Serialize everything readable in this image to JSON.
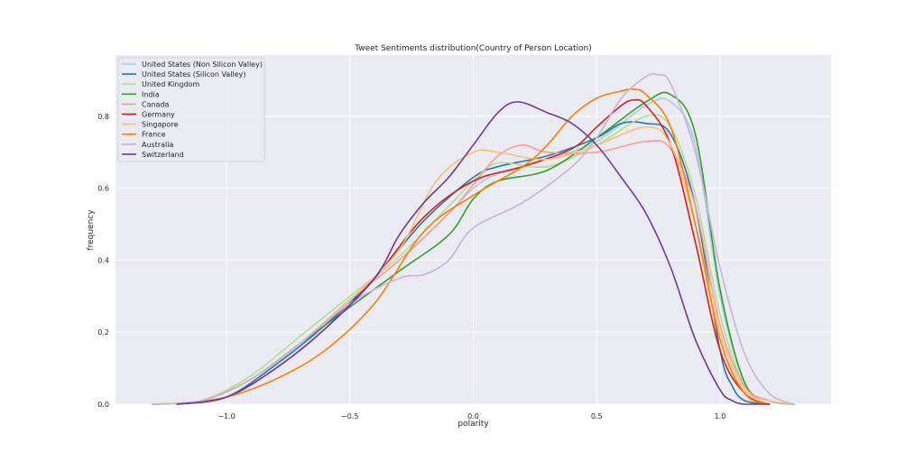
{
  "chart_data": {
    "type": "line",
    "title": "Tweet Sentiments distribution(Country of Person Location)",
    "xlabel": "polarity",
    "ylabel": "frequency",
    "xlim": [
      -1.45,
      1.45
    ],
    "ylim": [
      0.0,
      0.97
    ],
    "xticks": [
      -1.0,
      -0.5,
      0.0,
      0.5,
      1.0
    ],
    "xtick_labels": [
      "−1.0",
      "−0.5",
      "0.0",
      "0.5",
      "1.0"
    ],
    "yticks": [
      0.0,
      0.2,
      0.4,
      0.6,
      0.8
    ],
    "ytick_labels": [
      "0.0",
      "0.2",
      "0.4",
      "0.6",
      "0.8"
    ],
    "grid": true,
    "legend_position": "top-left",
    "series": [
      {
        "name": "United States (Non Silicon Valley)",
        "color": "#a6cee3",
        "x": [
          -1.3,
          -1.1,
          -0.9,
          -0.7,
          -0.5,
          -0.3,
          -0.1,
          0.0,
          0.1,
          0.3,
          0.5,
          0.7,
          0.8,
          0.9,
          1.0,
          1.1,
          1.2,
          1.3
        ],
        "y": [
          0.0,
          0.01,
          0.07,
          0.17,
          0.29,
          0.4,
          0.53,
          0.6,
          0.64,
          0.68,
          0.73,
          0.83,
          0.84,
          0.72,
          0.3,
          0.06,
          0.01,
          0.0
        ]
      },
      {
        "name": "United States (Silicon Valley)",
        "color": "#1f78b4",
        "x": [
          -1.2,
          -1.0,
          -0.8,
          -0.6,
          -0.4,
          -0.2,
          0.0,
          0.1,
          0.3,
          0.5,
          0.6,
          0.7,
          0.8,
          0.9,
          1.0,
          1.05,
          1.1,
          1.2
        ],
        "y": [
          0.0,
          0.02,
          0.11,
          0.22,
          0.35,
          0.51,
          0.63,
          0.66,
          0.69,
          0.74,
          0.78,
          0.78,
          0.75,
          0.55,
          0.15,
          0.05,
          0.01,
          0.0
        ]
      },
      {
        "name": "United Kingdom",
        "color": "#b2df8a",
        "x": [
          -1.3,
          -1.1,
          -0.9,
          -0.7,
          -0.5,
          -0.3,
          -0.1,
          0.0,
          0.1,
          0.3,
          0.5,
          0.7,
          0.8,
          0.9,
          1.0,
          1.1,
          1.2,
          1.3
        ],
        "y": [
          0.0,
          0.01,
          0.08,
          0.19,
          0.3,
          0.41,
          0.55,
          0.62,
          0.67,
          0.66,
          0.72,
          0.8,
          0.77,
          0.58,
          0.25,
          0.05,
          0.01,
          0.0
        ]
      },
      {
        "name": "India",
        "color": "#33a02c",
        "x": [
          -1.3,
          -1.1,
          -0.9,
          -0.7,
          -0.5,
          -0.3,
          -0.1,
          0.0,
          0.1,
          0.3,
          0.5,
          0.7,
          0.8,
          0.9,
          1.0,
          1.1,
          1.2,
          1.3
        ],
        "y": [
          0.0,
          0.01,
          0.07,
          0.17,
          0.27,
          0.37,
          0.47,
          0.57,
          0.62,
          0.65,
          0.74,
          0.84,
          0.86,
          0.75,
          0.32,
          0.06,
          0.01,
          0.0
        ]
      },
      {
        "name": "Canada",
        "color": "#fb9a99",
        "x": [
          -1.3,
          -1.1,
          -0.9,
          -0.7,
          -0.5,
          -0.3,
          -0.1,
          0.0,
          0.1,
          0.2,
          0.3,
          0.5,
          0.7,
          0.8,
          0.9,
          1.0,
          1.1,
          1.2,
          1.3
        ],
        "y": [
          0.0,
          0.01,
          0.07,
          0.17,
          0.29,
          0.4,
          0.53,
          0.61,
          0.69,
          0.72,
          0.7,
          0.7,
          0.73,
          0.71,
          0.55,
          0.22,
          0.05,
          0.01,
          0.0
        ]
      },
      {
        "name": "Germany",
        "color": "#e31a1c",
        "x": [
          -1.2,
          -1.0,
          -0.8,
          -0.6,
          -0.4,
          -0.2,
          0.0,
          0.2,
          0.4,
          0.5,
          0.6,
          0.65,
          0.7,
          0.8,
          0.9,
          1.0,
          1.1,
          1.2
        ],
        "y": [
          0.0,
          0.02,
          0.1,
          0.21,
          0.35,
          0.52,
          0.62,
          0.66,
          0.71,
          0.77,
          0.83,
          0.845,
          0.83,
          0.72,
          0.45,
          0.15,
          0.03,
          0.0
        ]
      },
      {
        "name": "Singapore",
        "color": "#fdbf6f",
        "x": [
          -1.3,
          -1.1,
          -0.9,
          -0.7,
          -0.5,
          -0.3,
          -0.15,
          0.0,
          0.1,
          0.3,
          0.5,
          0.7,
          0.8,
          0.9,
          1.0,
          1.1,
          1.2,
          1.3
        ],
        "y": [
          0.0,
          0.01,
          0.07,
          0.17,
          0.29,
          0.43,
          0.62,
          0.7,
          0.7,
          0.68,
          0.72,
          0.77,
          0.72,
          0.5,
          0.2,
          0.04,
          0.01,
          0.0
        ]
      },
      {
        "name": "France",
        "color": "#ff7f00",
        "x": [
          -1.2,
          -1.0,
          -0.8,
          -0.6,
          -0.4,
          -0.2,
          0.0,
          0.2,
          0.3,
          0.4,
          0.5,
          0.6,
          0.65,
          0.7,
          0.8,
          0.9,
          1.0,
          1.1,
          1.2
        ],
        "y": [
          0.0,
          0.02,
          0.07,
          0.15,
          0.28,
          0.48,
          0.58,
          0.66,
          0.72,
          0.8,
          0.85,
          0.87,
          0.875,
          0.86,
          0.77,
          0.5,
          0.18,
          0.03,
          0.0
        ]
      },
      {
        "name": "Australia",
        "color": "#cab2d6",
        "x": [
          -1.3,
          -1.1,
          -0.9,
          -0.7,
          -0.5,
          -0.3,
          -0.2,
          -0.1,
          0.0,
          0.2,
          0.4,
          0.5,
          0.6,
          0.7,
          0.75,
          0.8,
          0.9,
          1.0,
          1.1,
          1.2,
          1.3
        ],
        "y": [
          0.0,
          0.01,
          0.07,
          0.17,
          0.28,
          0.35,
          0.36,
          0.4,
          0.49,
          0.56,
          0.66,
          0.74,
          0.85,
          0.91,
          0.915,
          0.89,
          0.7,
          0.38,
          0.14,
          0.03,
          0.0
        ]
      },
      {
        "name": "Switzerland",
        "color": "#6a3d9a",
        "x": [
          -1.2,
          -1.0,
          -0.8,
          -0.6,
          -0.4,
          -0.3,
          -0.2,
          -0.1,
          0.0,
          0.1,
          0.18,
          0.3,
          0.4,
          0.5,
          0.6,
          0.7,
          0.8,
          0.9,
          1.0,
          1.05,
          1.1,
          1.2
        ],
        "y": [
          0.0,
          0.02,
          0.1,
          0.21,
          0.35,
          0.47,
          0.56,
          0.63,
          0.72,
          0.81,
          0.84,
          0.81,
          0.78,
          0.72,
          0.63,
          0.53,
          0.38,
          0.18,
          0.04,
          0.01,
          0.0,
          0.0
        ]
      }
    ]
  }
}
